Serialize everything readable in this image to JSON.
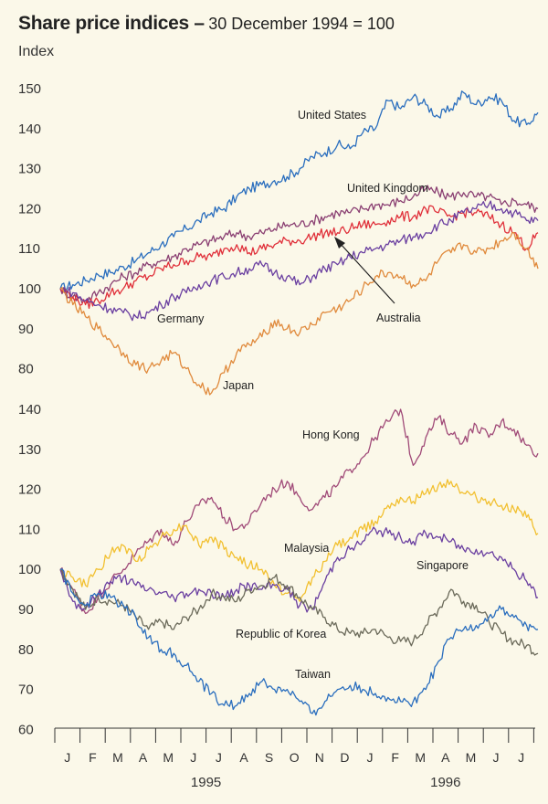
{
  "title": "Share price indices –",
  "subtitle": "30 December 1994 = 100",
  "index_label": "Index",
  "chart_data": [
    {
      "type": "line",
      "panel": "top",
      "ylim": [
        80,
        150
      ],
      "yticks": [
        150,
        140,
        130,
        120,
        110,
        100,
        90,
        80
      ],
      "n_months": 19,
      "series": [
        {
          "name": "United States",
          "color": "#2a6ebe",
          "x": [
            0,
            0.5,
            1,
            1.5,
            2,
            2.5,
            3,
            3.5,
            4,
            4.5,
            5,
            5.5,
            6,
            6.5,
            7,
            7.5,
            8,
            8.5,
            9,
            9.5,
            10,
            10.5,
            11,
            11.5,
            12,
            12.5,
            13,
            13.5,
            14,
            14.5,
            15,
            15.5,
            16,
            16.5,
            17,
            17.5,
            18,
            18.5,
            18.95
          ],
          "values": [
            100,
            101,
            102,
            103.5,
            104,
            105.5,
            107,
            109,
            111,
            113,
            115,
            117,
            119,
            120,
            123,
            125,
            126,
            127,
            128,
            130,
            133,
            134,
            136,
            135,
            139,
            140,
            147,
            145,
            148,
            146,
            143,
            145,
            149,
            146,
            148,
            147,
            142,
            141,
            144
          ]
        },
        {
          "name": "United Kingdom",
          "color": "#8a3f72",
          "x": [
            0,
            0.5,
            1,
            1.5,
            2,
            2.5,
            3,
            3.5,
            4,
            4.5,
            5,
            5.5,
            6,
            6.5,
            7,
            7.5,
            8,
            8.5,
            9,
            9.5,
            10,
            10.5,
            11,
            11.5,
            12,
            12.5,
            13,
            13.5,
            14,
            14.5,
            15,
            15.5,
            16,
            16.5,
            17,
            17.5,
            18,
            18.5,
            18.95
          ],
          "values": [
            100,
            98,
            97,
            99,
            101,
            103,
            104,
            106,
            107,
            108,
            110,
            111,
            112,
            113,
            114,
            113,
            114,
            115,
            116,
            116,
            117,
            118,
            119,
            119,
            120,
            121,
            121,
            122,
            123,
            125,
            124,
            123,
            124,
            123,
            123,
            121,
            122,
            121,
            120
          ]
        },
        {
          "name": "Australia",
          "color": "#e0303a",
          "x": [
            0,
            0.5,
            1,
            1.5,
            2,
            2.5,
            3,
            3.5,
            4,
            4.5,
            5,
            5.5,
            6,
            6.5,
            7,
            7.5,
            8,
            8.5,
            9,
            9.5,
            10,
            10.5,
            11,
            11.5,
            12,
            12.5,
            13,
            13.5,
            14,
            14.5,
            15,
            15.5,
            16,
            16.5,
            17,
            17.5,
            18,
            18.5,
            18.95
          ],
          "values": [
            100,
            98,
            96,
            97,
            99,
            100,
            102,
            103,
            105,
            106,
            107,
            108,
            108,
            110,
            111,
            109,
            110,
            111,
            112,
            112,
            113,
            114,
            114,
            115,
            116,
            116,
            117,
            118,
            118,
            120,
            119,
            118,
            119,
            119,
            118,
            116,
            114,
            110,
            114
          ]
        },
        {
          "name": "Germany",
          "color": "#6a3fa0",
          "x": [
            0,
            0.5,
            1,
            1.5,
            2,
            2.5,
            3,
            3.5,
            4,
            4.5,
            5,
            5.5,
            6,
            6.5,
            7,
            7.5,
            8,
            8.5,
            9,
            9.5,
            10,
            10.5,
            11,
            11.5,
            12,
            12.5,
            13,
            13.5,
            14,
            14.5,
            15,
            15.5,
            16,
            16.5,
            17,
            17.5,
            18,
            18.5,
            18.95
          ],
          "values": [
            100,
            99,
            97,
            96,
            95,
            94,
            93,
            94,
            96,
            98,
            99,
            101,
            102,
            103,
            104,
            105,
            106,
            104,
            103,
            101,
            103,
            105,
            106,
            108,
            109,
            110,
            111,
            112,
            113,
            114,
            116,
            117,
            119,
            120,
            121,
            120,
            119,
            117,
            117
          ]
        },
        {
          "name": "Japan",
          "color": "#e08a3c",
          "x": [
            0,
            0.5,
            1,
            1.5,
            2,
            2.5,
            3,
            3.5,
            4,
            4.5,
            5,
            5.5,
            6,
            6.5,
            7,
            7.5,
            8,
            8.5,
            9,
            9.5,
            10,
            10.5,
            11,
            11.5,
            12,
            12.5,
            13,
            13.5,
            14,
            14.5,
            15,
            15.5,
            16,
            16.5,
            17,
            17.5,
            18,
            18.5,
            18.95
          ],
          "values": [
            100,
            96,
            93,
            90,
            87,
            84,
            81,
            80,
            82,
            84,
            80,
            76,
            74,
            79,
            84,
            86,
            88,
            92,
            90,
            89,
            91,
            94,
            95,
            97,
            100,
            103,
            104,
            103,
            101,
            102,
            107,
            109,
            111,
            109,
            110,
            112,
            114,
            110,
            105
          ]
        }
      ],
      "labels": [
        "United States",
        "United Kingdom",
        "Australia",
        "Germany",
        "Japan"
      ]
    },
    {
      "type": "line",
      "panel": "bottom",
      "ylim": [
        60,
        140
      ],
      "yticks": [
        140,
        130,
        120,
        110,
        100,
        90,
        80,
        70,
        60
      ],
      "n_months": 19,
      "series": [
        {
          "name": "Hong Kong",
          "color": "#a04a78",
          "x": [
            0,
            0.5,
            1,
            1.5,
            2,
            2.5,
            3,
            3.5,
            4,
            4.5,
            5,
            5.5,
            6,
            6.5,
            7,
            7.5,
            8,
            8.5,
            9,
            9.5,
            10,
            10.5,
            11,
            11.5,
            12,
            12.5,
            13,
            13.5,
            14,
            14.5,
            15,
            15.5,
            16,
            16.5,
            17,
            17.5,
            18,
            18.5,
            18.95
          ],
          "values": [
            100,
            95,
            89,
            93,
            97,
            100,
            104,
            107,
            110,
            106,
            112,
            116,
            118,
            113,
            110,
            112,
            117,
            120,
            122,
            118,
            115,
            118,
            121,
            125,
            128,
            133,
            137,
            140,
            126,
            133,
            138,
            134,
            132,
            136,
            133,
            137,
            135,
            131,
            129
          ]
        },
        {
          "name": "Malaysia",
          "color": "#f2c030",
          "x": [
            0,
            0.5,
            1,
            1.5,
            2,
            2.5,
            3,
            3.5,
            4,
            4.5,
            5,
            5.5,
            6,
            6.5,
            7,
            7.5,
            8,
            8.5,
            9,
            9.5,
            10,
            10.5,
            11,
            11.5,
            12,
            12.5,
            13,
            13.5,
            14,
            14.5,
            15,
            15.5,
            16,
            16.5,
            17,
            17.5,
            18,
            18.5,
            18.95
          ],
          "values": [
            100,
            98,
            96,
            100,
            104,
            106,
            102,
            105,
            108,
            110,
            111,
            106,
            108,
            105,
            103,
            101,
            100,
            96,
            94,
            92,
            98,
            102,
            106,
            108,
            110,
            112,
            116,
            118,
            117,
            119,
            121,
            122,
            119,
            118,
            117,
            116,
            115,
            113,
            109
          ]
        },
        {
          "name": "Singapore",
          "color": "#6a3fa0",
          "x": [
            0,
            0.5,
            1,
            1.5,
            2,
            2.5,
            3,
            3.5,
            4,
            4.5,
            5,
            5.5,
            6,
            6.5,
            7,
            7.5,
            8,
            8.5,
            9,
            9.5,
            10,
            10.5,
            11,
            11.5,
            12,
            12.5,
            13,
            13.5,
            14,
            14.5,
            15,
            15.5,
            16,
            16.5,
            17,
            17.5,
            18,
            18.5,
            18.95
          ],
          "values": [
            100,
            92,
            90,
            94,
            97,
            98,
            96,
            95,
            94,
            93,
            94,
            95,
            94,
            93,
            95,
            96,
            95,
            96,
            95,
            91,
            90,
            97,
            103,
            105,
            107,
            110,
            109,
            108,
            107,
            109,
            108,
            107,
            105,
            105,
            104,
            103,
            100,
            97,
            93
          ]
        },
        {
          "name": "Republic of Korea",
          "color": "#6b6a5a",
          "x": [
            0,
            0.5,
            1,
            1.5,
            2,
            2.5,
            3,
            3.5,
            4,
            4.5,
            5,
            5.5,
            6,
            6.5,
            7,
            7.5,
            8,
            8.5,
            9,
            9.5,
            10,
            10.5,
            11,
            11.5,
            12,
            12.5,
            13,
            13.5,
            14,
            14.5,
            15,
            15.5,
            16,
            16.5,
            17,
            17.5,
            18,
            18.5,
            18.95
          ],
          "values": [
            100,
            95,
            90,
            93,
            92,
            91,
            88,
            85,
            87,
            85,
            88,
            90,
            94,
            93,
            92,
            95,
            96,
            98,
            96,
            93,
            90,
            88,
            85,
            84,
            84,
            85,
            83,
            82,
            82,
            86,
            90,
            95,
            92,
            91,
            87,
            84,
            82,
            81,
            79
          ]
        },
        {
          "name": "Taiwan",
          "color": "#2a6ebe",
          "x": [
            0,
            0.5,
            1,
            1.5,
            2,
            2.5,
            3,
            3.5,
            4,
            4.5,
            5,
            5.5,
            6,
            6.5,
            7,
            7.5,
            8,
            8.5,
            9,
            9.5,
            10,
            10.5,
            11,
            11.5,
            12,
            12.5,
            13,
            13.5,
            14,
            14.5,
            15,
            15.5,
            16,
            16.5,
            17,
            17.5,
            18,
            18.5,
            18.95
          ],
          "values": [
            100,
            94,
            91,
            94,
            93,
            91,
            88,
            83,
            80,
            79,
            76,
            72,
            69,
            66,
            66,
            69,
            72,
            70,
            70,
            67,
            64,
            67,
            70,
            71,
            70,
            69,
            68,
            67,
            67,
            70,
            77,
            83,
            85,
            86,
            88,
            90,
            88,
            86,
            85
          ]
        }
      ],
      "labels": [
        "Hong Kong",
        "Malaysia",
        "Singapore",
        "Republic of Korea",
        "Taiwan"
      ]
    }
  ],
  "x_axis": {
    "months": [
      "J",
      "F",
      "M",
      "A",
      "M",
      "J",
      "J",
      "A",
      "S",
      "O",
      "N",
      "D",
      "J",
      "F",
      "M",
      "A",
      "M",
      "J",
      "J"
    ],
    "years": [
      "1995",
      "1996"
    ]
  }
}
